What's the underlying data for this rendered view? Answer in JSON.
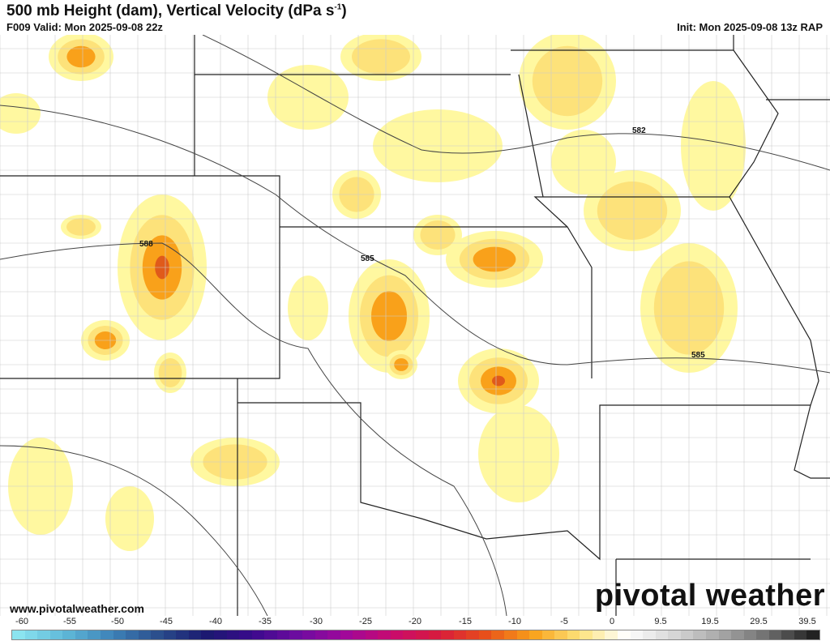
{
  "header": {
    "title": "500 mb Height (dam), Vertical Velocity (dPa s",
    "title_sup": "-1",
    "title_end": ")",
    "valid": "F009 Valid: Mon 2025-09-08 22z",
    "init": "Init: Mon 2025-09-08 13z RAP"
  },
  "footer": {
    "url": "www.pivotalweather.com",
    "logo": "pivotal weather"
  },
  "contours": [
    {
      "label": "588"
    },
    {
      "label": "585"
    },
    {
      "label": "582"
    },
    {
      "label": "585"
    }
  ],
  "colorbar": {
    "ticks": [
      "-60",
      "-55",
      "-50",
      "-45",
      "-40",
      "-35",
      "-30",
      "-25",
      "-20",
      "-15",
      "-10",
      "-5",
      "0",
      "9.5",
      "19.5",
      "29.5",
      "39.5"
    ],
    "colors": [
      "#8be4f0",
      "#5fb8d8",
      "#3d82b8",
      "#2a4d8c",
      "#1a1a70",
      "#3a0a8c",
      "#6e0ca0",
      "#a0089a",
      "#c80a6e",
      "#d81c3c",
      "#e8501a",
      "#f9a11a",
      "#fde27a",
      "#ffffff",
      "#d8d8d8",
      "#a8a8a8",
      "#707070",
      "#222222"
    ]
  },
  "legend_colors": {
    "light_yellow": "#fff8a0",
    "yellow": "#fde27a",
    "orange": "#f9a11a",
    "red_orange": "#e05a1a"
  }
}
